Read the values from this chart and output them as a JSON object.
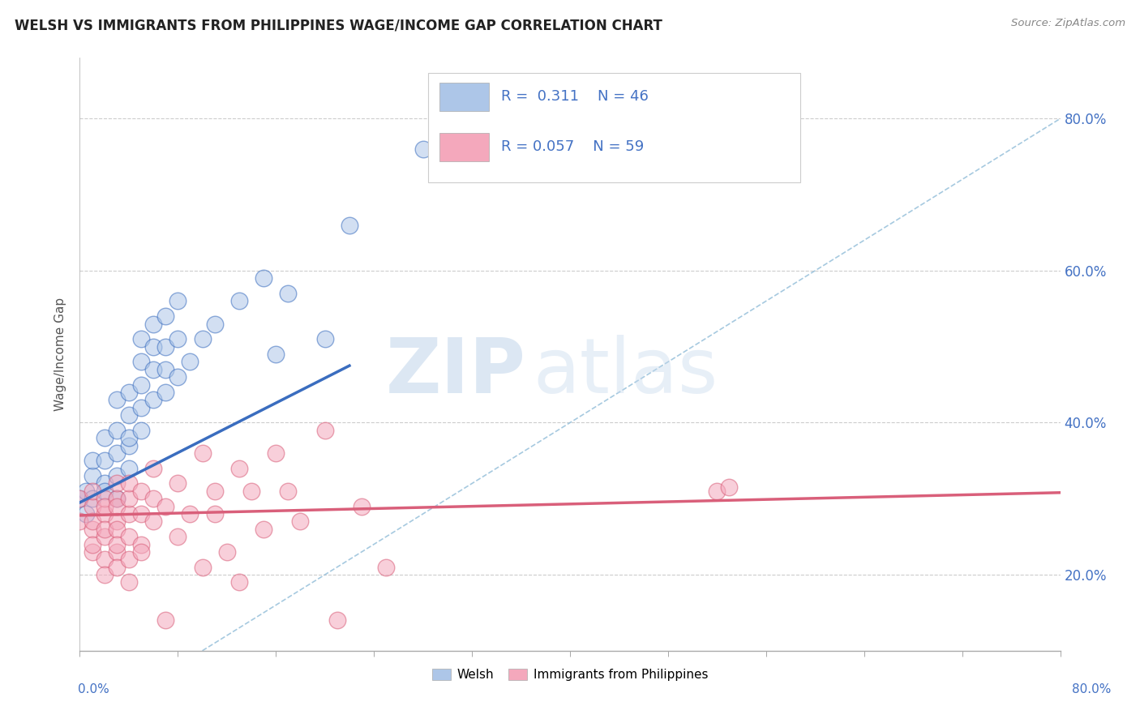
{
  "title": "WELSH VS IMMIGRANTS FROM PHILIPPINES WAGE/INCOME GAP CORRELATION CHART",
  "source_text": "Source: ZipAtlas.com",
  "ylabel": "Wage/Income Gap",
  "xmin": 0.0,
  "xmax": 0.8,
  "ymin": 0.1,
  "ymax": 0.88,
  "ytick_labels": [
    "20.0%",
    "40.0%",
    "60.0%",
    "80.0%"
  ],
  "ytick_values": [
    0.2,
    0.4,
    0.6,
    0.8
  ],
  "welsh_color": "#adc6e8",
  "philippines_color": "#f4a8bc",
  "welsh_line_color": "#3a6dbf",
  "philippines_line_color": "#d95f7a",
  "diagonal_line_color": "#90bcd8",
  "watermark_zip": "ZIP",
  "watermark_atlas": "atlas",
  "background_color": "#ffffff",
  "legend_r1": "R =  0.311",
  "legend_n1": "N = 46",
  "legend_r2": "R = 0.057",
  "legend_n2": "N = 59",
  "welsh_scatter": [
    [
      0.0,
      0.3
    ],
    [
      0.005,
      0.31
    ],
    [
      0.005,
      0.28
    ],
    [
      0.01,
      0.33
    ],
    [
      0.01,
      0.3
    ],
    [
      0.01,
      0.35
    ],
    [
      0.02,
      0.32
    ],
    [
      0.02,
      0.35
    ],
    [
      0.02,
      0.31
    ],
    [
      0.02,
      0.38
    ],
    [
      0.03,
      0.3
    ],
    [
      0.03,
      0.33
    ],
    [
      0.03,
      0.36
    ],
    [
      0.03,
      0.39
    ],
    [
      0.03,
      0.43
    ],
    [
      0.04,
      0.37
    ],
    [
      0.04,
      0.41
    ],
    [
      0.04,
      0.44
    ],
    [
      0.04,
      0.38
    ],
    [
      0.04,
      0.34
    ],
    [
      0.05,
      0.39
    ],
    [
      0.05,
      0.42
    ],
    [
      0.05,
      0.45
    ],
    [
      0.05,
      0.48
    ],
    [
      0.05,
      0.51
    ],
    [
      0.06,
      0.43
    ],
    [
      0.06,
      0.47
    ],
    [
      0.06,
      0.5
    ],
    [
      0.06,
      0.53
    ],
    [
      0.07,
      0.44
    ],
    [
      0.07,
      0.47
    ],
    [
      0.07,
      0.5
    ],
    [
      0.07,
      0.54
    ],
    [
      0.08,
      0.46
    ],
    [
      0.08,
      0.51
    ],
    [
      0.08,
      0.56
    ],
    [
      0.09,
      0.48
    ],
    [
      0.1,
      0.51
    ],
    [
      0.11,
      0.53
    ],
    [
      0.13,
      0.56
    ],
    [
      0.15,
      0.59
    ],
    [
      0.16,
      0.49
    ],
    [
      0.17,
      0.57
    ],
    [
      0.2,
      0.51
    ],
    [
      0.22,
      0.66
    ],
    [
      0.28,
      0.76
    ]
  ],
  "philippines_scatter": [
    [
      0.0,
      0.3
    ],
    [
      0.0,
      0.27
    ],
    [
      0.01,
      0.29
    ],
    [
      0.01,
      0.26
    ],
    [
      0.01,
      0.23
    ],
    [
      0.01,
      0.27
    ],
    [
      0.01,
      0.31
    ],
    [
      0.01,
      0.24
    ],
    [
      0.02,
      0.28
    ],
    [
      0.02,
      0.25
    ],
    [
      0.02,
      0.22
    ],
    [
      0.02,
      0.3
    ],
    [
      0.02,
      0.26
    ],
    [
      0.02,
      0.29
    ],
    [
      0.02,
      0.2
    ],
    [
      0.03,
      0.27
    ],
    [
      0.03,
      0.23
    ],
    [
      0.03,
      0.3
    ],
    [
      0.03,
      0.26
    ],
    [
      0.03,
      0.24
    ],
    [
      0.03,
      0.29
    ],
    [
      0.03,
      0.32
    ],
    [
      0.03,
      0.21
    ],
    [
      0.04,
      0.28
    ],
    [
      0.04,
      0.25
    ],
    [
      0.04,
      0.22
    ],
    [
      0.04,
      0.3
    ],
    [
      0.04,
      0.32
    ],
    [
      0.04,
      0.19
    ],
    [
      0.05,
      0.28
    ],
    [
      0.05,
      0.24
    ],
    [
      0.05,
      0.31
    ],
    [
      0.05,
      0.23
    ],
    [
      0.06,
      0.27
    ],
    [
      0.06,
      0.3
    ],
    [
      0.06,
      0.34
    ],
    [
      0.07,
      0.14
    ],
    [
      0.07,
      0.29
    ],
    [
      0.08,
      0.25
    ],
    [
      0.08,
      0.32
    ],
    [
      0.09,
      0.28
    ],
    [
      0.1,
      0.21
    ],
    [
      0.1,
      0.36
    ],
    [
      0.11,
      0.31
    ],
    [
      0.11,
      0.28
    ],
    [
      0.12,
      0.23
    ],
    [
      0.13,
      0.34
    ],
    [
      0.13,
      0.19
    ],
    [
      0.14,
      0.31
    ],
    [
      0.15,
      0.26
    ],
    [
      0.16,
      0.36
    ],
    [
      0.17,
      0.31
    ],
    [
      0.18,
      0.27
    ],
    [
      0.2,
      0.39
    ],
    [
      0.21,
      0.14
    ],
    [
      0.23,
      0.29
    ],
    [
      0.25,
      0.21
    ],
    [
      0.52,
      0.31
    ],
    [
      0.53,
      0.315
    ]
  ],
  "welsh_trendline_x": [
    0.0,
    0.22
  ],
  "welsh_trendline_y": [
    0.295,
    0.475
  ],
  "philippines_trendline_x": [
    0.0,
    0.8
  ],
  "philippines_trendline_y": [
    0.278,
    0.308
  ],
  "diag_line_x": [
    0.1,
    0.8
  ],
  "diag_line_y": [
    0.1,
    0.8
  ]
}
